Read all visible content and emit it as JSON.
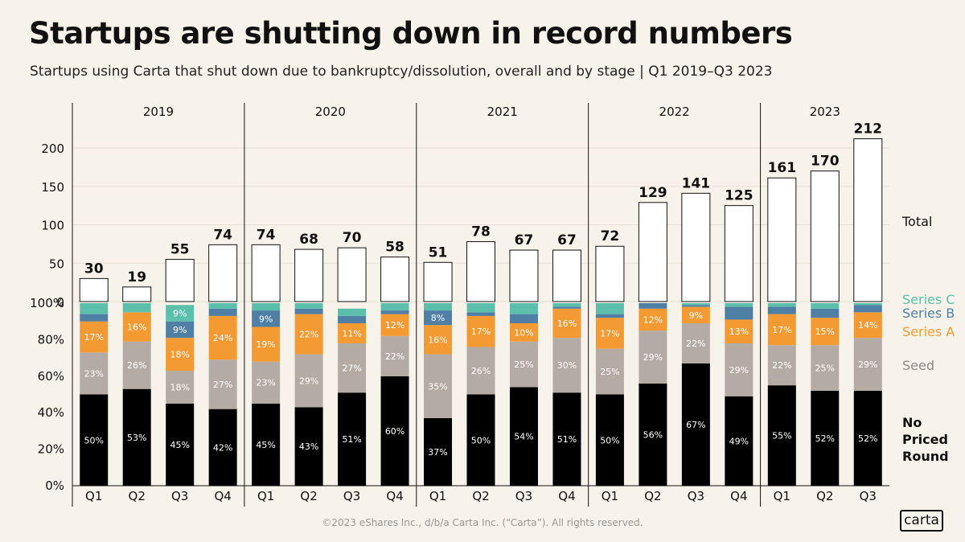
{
  "title": "Startups are shutting down in record numbers",
  "subtitle": "Startups using Carta that shut down due to bankruptcy/dissolution, overall and by stage | Q1 2019–Q3 2023",
  "footer": "©2023 eShares Inc., d/b/a Carta Inc. (“Carta”). All rights reserved.",
  "logo": "carta",
  "colors": {
    "background": "#f8f3ea",
    "no_priced_round": "#000000",
    "seed": "#b5aba5",
    "series_a": "#f39a33",
    "series_b": "#4f7fa5",
    "series_c": "#5bbfac"
  },
  "chart_data": [
    {
      "type": "bar",
      "title": "",
      "years": [
        "2019",
        "2020",
        "2021",
        "2022",
        "2023"
      ],
      "quarters_per_year": [
        4,
        4,
        4,
        4,
        3
      ],
      "categories": [
        "Q1",
        "Q2",
        "Q3",
        "Q4",
        "Q1",
        "Q2",
        "Q3",
        "Q4",
        "Q1",
        "Q2",
        "Q3",
        "Q4",
        "Q1",
        "Q2",
        "Q3",
        "Q4",
        "Q1",
        "Q2",
        "Q3"
      ],
      "series": [
        {
          "name": "Total",
          "values": [
            30,
            19,
            55,
            74,
            74,
            68,
            70,
            58,
            51,
            78,
            67,
            67,
            72,
            129,
            141,
            125,
            161,
            170,
            212
          ]
        }
      ],
      "yticks": [
        "0",
        "50",
        "100",
        "150",
        "200"
      ],
      "ylim": [
        0,
        230
      ],
      "grid": true
    },
    {
      "type": "bar",
      "stacked": true,
      "percent": true,
      "categories": [
        "Q1",
        "Q2",
        "Q3",
        "Q4",
        "Q1",
        "Q2",
        "Q3",
        "Q4",
        "Q1",
        "Q2",
        "Q3",
        "Q4",
        "Q1",
        "Q2",
        "Q3",
        "Q4",
        "Q1",
        "Q2",
        "Q3"
      ],
      "series": [
        {
          "name": "No Priced Round",
          "values": [
            50,
            53,
            45,
            42,
            45,
            43,
            51,
            60,
            37,
            50,
            54,
            51,
            50,
            56,
            67,
            49,
            55,
            52,
            52
          ]
        },
        {
          "name": "Seed",
          "values": [
            23,
            26,
            18,
            27,
            23,
            29,
            27,
            22,
            35,
            26,
            25,
            30,
            25,
            29,
            22,
            29,
            22,
            25,
            29
          ]
        },
        {
          "name": "Series A",
          "values": [
            17,
            16,
            18,
            24,
            19,
            22,
            11,
            12,
            16,
            17,
            10,
            16,
            17,
            12,
            9,
            13,
            17,
            15,
            14
          ]
        },
        {
          "name": "Series B",
          "values": [
            4,
            0,
            9,
            4,
            9,
            3,
            4,
            2,
            8,
            2,
            5,
            1,
            2,
            3,
            1,
            7,
            4,
            5,
            4
          ]
        },
        {
          "name": "Series C",
          "values": [
            6,
            5,
            9,
            3,
            4,
            3,
            4,
            4,
            4,
            5,
            6,
            2,
            6,
            0,
            1,
            2,
            2,
            3,
            1
          ]
        }
      ],
      "labels": [
        [
          "50%",
          "53%",
          "45%",
          "42%",
          "45%",
          "43%",
          "51%",
          "60%",
          "37%",
          "50%",
          "54%",
          "51%",
          "50%",
          "56%",
          "67%",
          "49%",
          "55%",
          "52%",
          "52%"
        ],
        [
          "23%",
          "26%",
          "18%",
          "27%",
          "23%",
          "29%",
          "27%",
          "22%",
          "35%",
          "26%",
          "25%",
          "30%",
          "25%",
          "29%",
          "22%",
          "29%",
          "22%",
          "25%",
          "29%"
        ],
        [
          "17%",
          "16%",
          "18%",
          "24%",
          "19%",
          "22%",
          "11%",
          "12%",
          "16%",
          "17%",
          "10%",
          "16%",
          "17%",
          "12%",
          "9%",
          "13%",
          "17%",
          "15%",
          "14%"
        ],
        [
          "",
          "",
          "9%",
          "",
          "9%",
          "",
          "",
          "",
          "8%",
          "",
          "",
          "",
          "",
          "",
          "",
          "",
          "",
          "",
          ""
        ],
        [
          "",
          "",
          "9%",
          "",
          "",
          "",
          "",
          "",
          "",
          "",
          "",
          "",
          "",
          "",
          "",
          "",
          "",
          "",
          ""
        ]
      ],
      "yticks": [
        "0%",
        "20%",
        "40%",
        "60%",
        "80%",
        "100%"
      ],
      "ylim": [
        0,
        100
      ]
    }
  ]
}
